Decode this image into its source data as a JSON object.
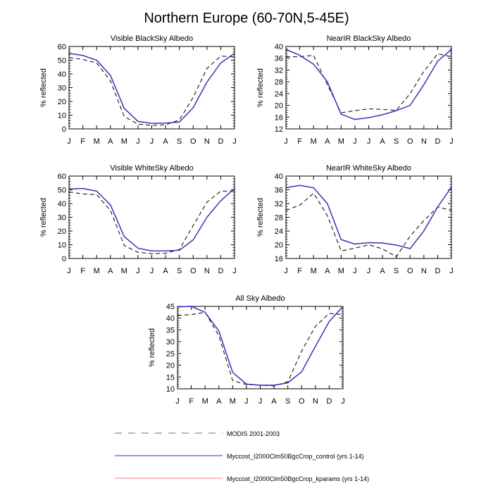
{
  "figure_title": "Northern Europe (60-70N,5-45E)",
  "legend": {
    "entries": [
      {
        "label": "MODIS 2001-2003",
        "style": "dashed",
        "color": "#8c8c8c"
      },
      {
        "label": "Myccost_I2000Clm50BgcCrop_control (yrs 1-14)",
        "style": "solid",
        "color": "#3a30c8"
      },
      {
        "label": "Myccost_I2000Clm50BgcCrop_kparams (yrs 1-14)",
        "style": "solid",
        "color": "#ff8080"
      }
    ]
  },
  "colors": {
    "modis": "#000000",
    "control": "#3a30c8",
    "kparams": "#ff3b3b"
  },
  "chart_data": [
    {
      "type": "line",
      "title": "Visible BlackSky Albedo",
      "ylabel": "% reflected",
      "xlabel": "",
      "categories": [
        "J",
        "F",
        "M",
        "A",
        "M",
        "J",
        "J",
        "A",
        "S",
        "O",
        "N",
        "D",
        "J"
      ],
      "ylim": [
        0,
        60
      ],
      "yticks": [
        0,
        10,
        20,
        30,
        40,
        50,
        60
      ],
      "series": [
        {
          "name": "MODIS 2001-2003",
          "style": "dashed",
          "values": [
            52,
            50.5,
            48,
            35,
            9,
            3.5,
            2.5,
            3,
            6.5,
            23,
            44,
            53,
            52.5
          ]
        },
        {
          "name": "Myccost_I2000Clm50BgcCrop_kparams (yrs 1-14)",
          "style": "solid",
          "values": [
            55,
            53.5,
            50,
            39,
            15,
            5.5,
            4,
            4.2,
            5,
            15.5,
            34,
            48,
            55
          ]
        },
        {
          "name": "Myccost_I2000Clm50BgcCrop_control (yrs 1-14)",
          "style": "solid",
          "values": [
            55,
            53.5,
            50,
            39,
            15,
            5.5,
            4,
            4.2,
            5,
            15.5,
            34,
            48,
            55
          ]
        }
      ]
    },
    {
      "type": "line",
      "title": "NearIR BlackSky Albedo",
      "ylabel": "% reflected",
      "xlabel": "",
      "categories": [
        "J",
        "F",
        "M",
        "A",
        "M",
        "J",
        "J",
        "A",
        "S",
        "O",
        "N",
        "D",
        "J"
      ],
      "ylim": [
        12,
        40
      ],
      "yticks": [
        12,
        16,
        20,
        24,
        28,
        32,
        36,
        40
      ],
      "series": [
        {
          "name": "MODIS 2001-2003",
          "style": "dashed",
          "values": [
            36.5,
            36.5,
            37,
            27,
            17.5,
            18.2,
            18.8,
            18.6,
            18.3,
            24,
            31.5,
            37.5,
            36.5
          ]
        },
        {
          "name": "Myccost_I2000Clm50BgcCrop_kparams (yrs 1-14)",
          "style": "solid",
          "values": [
            39,
            37,
            34,
            28,
            17,
            15.2,
            15.8,
            16.8,
            18.2,
            20,
            27,
            35,
            39
          ]
        },
        {
          "name": "Myccost_I2000Clm50BgcCrop_control (yrs 1-14)",
          "style": "solid",
          "values": [
            39,
            37,
            34,
            28,
            17,
            15.2,
            15.8,
            16.8,
            18.2,
            20,
            27,
            35,
            39
          ]
        }
      ]
    },
    {
      "type": "line",
      "title": "Visible WhiteSky Albedo",
      "ylabel": "% reflected",
      "xlabel": "",
      "categories": [
        "J",
        "F",
        "M",
        "A",
        "M",
        "J",
        "J",
        "A",
        "S",
        "O",
        "N",
        "D",
        "J"
      ],
      "ylim": [
        0,
        60
      ],
      "yticks": [
        0,
        10,
        20,
        30,
        40,
        50,
        60
      ],
      "series": [
        {
          "name": "MODIS 2001-2003",
          "style": "dashed",
          "values": [
            48.5,
            47,
            46.5,
            35,
            9.5,
            4.5,
            3.5,
            3.8,
            6.5,
            24,
            41,
            49,
            49
          ]
        },
        {
          "name": "Myccost_I2000Clm50BgcCrop_kparams (yrs 1-14)",
          "style": "solid",
          "values": [
            50.5,
            51,
            49,
            39,
            16,
            7.5,
            5.5,
            5.5,
            6,
            13.5,
            30,
            42,
            51
          ]
        },
        {
          "name": "Myccost_I2000Clm50BgcCrop_control (yrs 1-14)",
          "style": "solid",
          "values": [
            50.5,
            51,
            49,
            39,
            16,
            7.5,
            5.5,
            5.5,
            6,
            13.5,
            30,
            42,
            51
          ]
        }
      ]
    },
    {
      "type": "line",
      "title": "NearIR WhiteSky Albedo",
      "ylabel": "% reflected",
      "xlabel": "",
      "categories": [
        "J",
        "F",
        "M",
        "A",
        "M",
        "J",
        "J",
        "A",
        "S",
        "O",
        "N",
        "D",
        "J"
      ],
      "ylim": [
        16,
        40
      ],
      "yticks": [
        16,
        20,
        24,
        28,
        32,
        36,
        40
      ],
      "series": [
        {
          "name": "MODIS 2001-2003",
          "style": "dashed",
          "values": [
            30,
            31.5,
            35,
            28.5,
            18.2,
            19,
            20,
            18.8,
            16.5,
            22.5,
            27,
            31,
            30
          ]
        },
        {
          "name": "Myccost_I2000Clm50BgcCrop_kparams (yrs 1-14)",
          "style": "solid",
          "values": [
            36.6,
            37.3,
            36.6,
            32,
            21.5,
            20.2,
            20.6,
            20.5,
            19.9,
            18.9,
            24,
            31,
            36.8
          ]
        },
        {
          "name": "Myccost_I2000Clm50BgcCrop_control (yrs 1-14)",
          "style": "solid",
          "values": [
            36.6,
            37.3,
            36.6,
            32,
            21.5,
            20.2,
            20.6,
            20.5,
            19.9,
            18.9,
            24,
            31,
            36.8
          ]
        }
      ]
    },
    {
      "type": "line",
      "title": "All Sky Albedo",
      "ylabel": "% reflected",
      "xlabel": "",
      "categories": [
        "J",
        "F",
        "M",
        "A",
        "M",
        "J",
        "J",
        "A",
        "S",
        "O",
        "N",
        "D",
        "J"
      ],
      "ylim": [
        10,
        45
      ],
      "yticks": [
        10,
        15,
        20,
        25,
        30,
        35,
        40,
        45
      ],
      "series": [
        {
          "name": "MODIS 2001-2003",
          "style": "dashed",
          "values": [
            41.2,
            41.5,
            42.5,
            32.5,
            13.5,
            11.8,
            11.5,
            11.2,
            13,
            26,
            36.5,
            42,
            41.5
          ]
        },
        {
          "name": "Myccost_I2000Clm50BgcCrop_kparams (yrs 1-14)",
          "style": "solid",
          "values": [
            44.8,
            45,
            42.5,
            34.5,
            17,
            12,
            11.5,
            11.5,
            12.5,
            17.2,
            28,
            38.5,
            45
          ]
        },
        {
          "name": "Myccost_I2000Clm50BgcCrop_control (yrs 1-14)",
          "style": "solid",
          "values": [
            44.8,
            45,
            42.5,
            34.5,
            17,
            12,
            11.5,
            11.5,
            12.5,
            17.2,
            28,
            38.5,
            45
          ]
        }
      ]
    }
  ]
}
